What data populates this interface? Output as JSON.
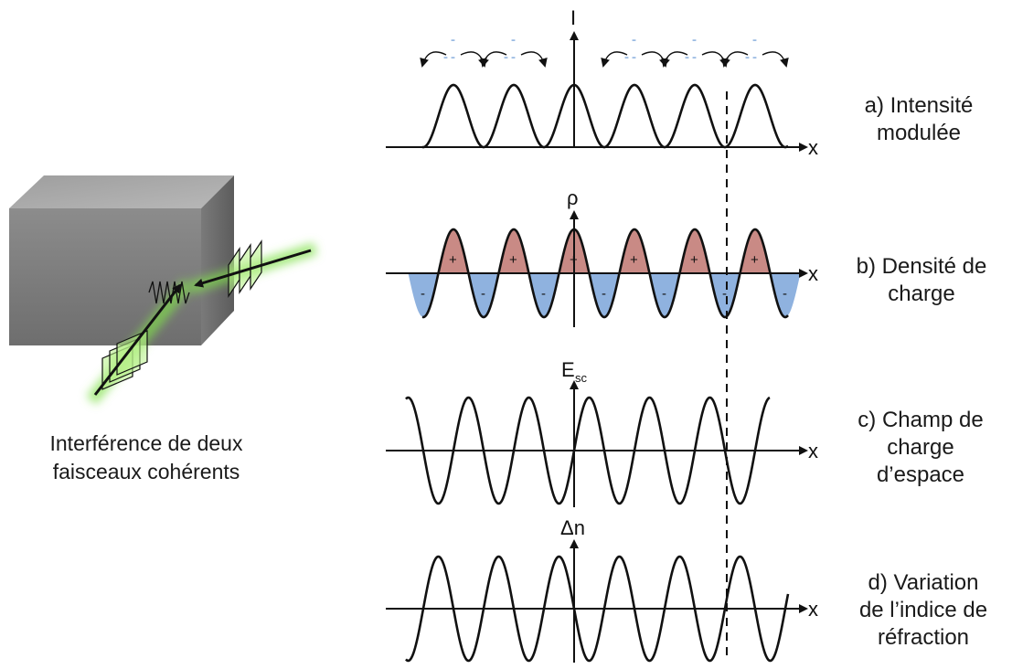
{
  "figure": {
    "crystal_caption_line1": "Interférence de deux",
    "crystal_caption_line2": "faisceaux cohérents",
    "panels": [
      {
        "id": "a",
        "axis_y": "I",
        "axis_x": "x",
        "label_lines": [
          "a) Intensité",
          "modulée"
        ]
      },
      {
        "id": "b",
        "axis_y": "ρ",
        "axis_x": "x",
        "label_lines": [
          "b) Densité de",
          "charge"
        ]
      },
      {
        "id": "c",
        "axis_y": "E",
        "axis_y_sub": "sc",
        "axis_x": "x",
        "label_lines": [
          "c) Champ de",
          "charge",
          "d’espace"
        ]
      },
      {
        "id": "d",
        "axis_y": "Δn",
        "axis_x": "x",
        "label_lines": [
          "d) Variation",
          "de l’indice de",
          "réfraction"
        ]
      }
    ],
    "charge_signs": {
      "positive": "+",
      "negative": "-"
    },
    "colors": {
      "positive_fill": "#c98a85",
      "negative_fill": "#8fb2df",
      "beam_glow": "#8ee05a",
      "crystal_gray": "#8a8a8a",
      "electron_blue": "#9bbbe3"
    }
  }
}
